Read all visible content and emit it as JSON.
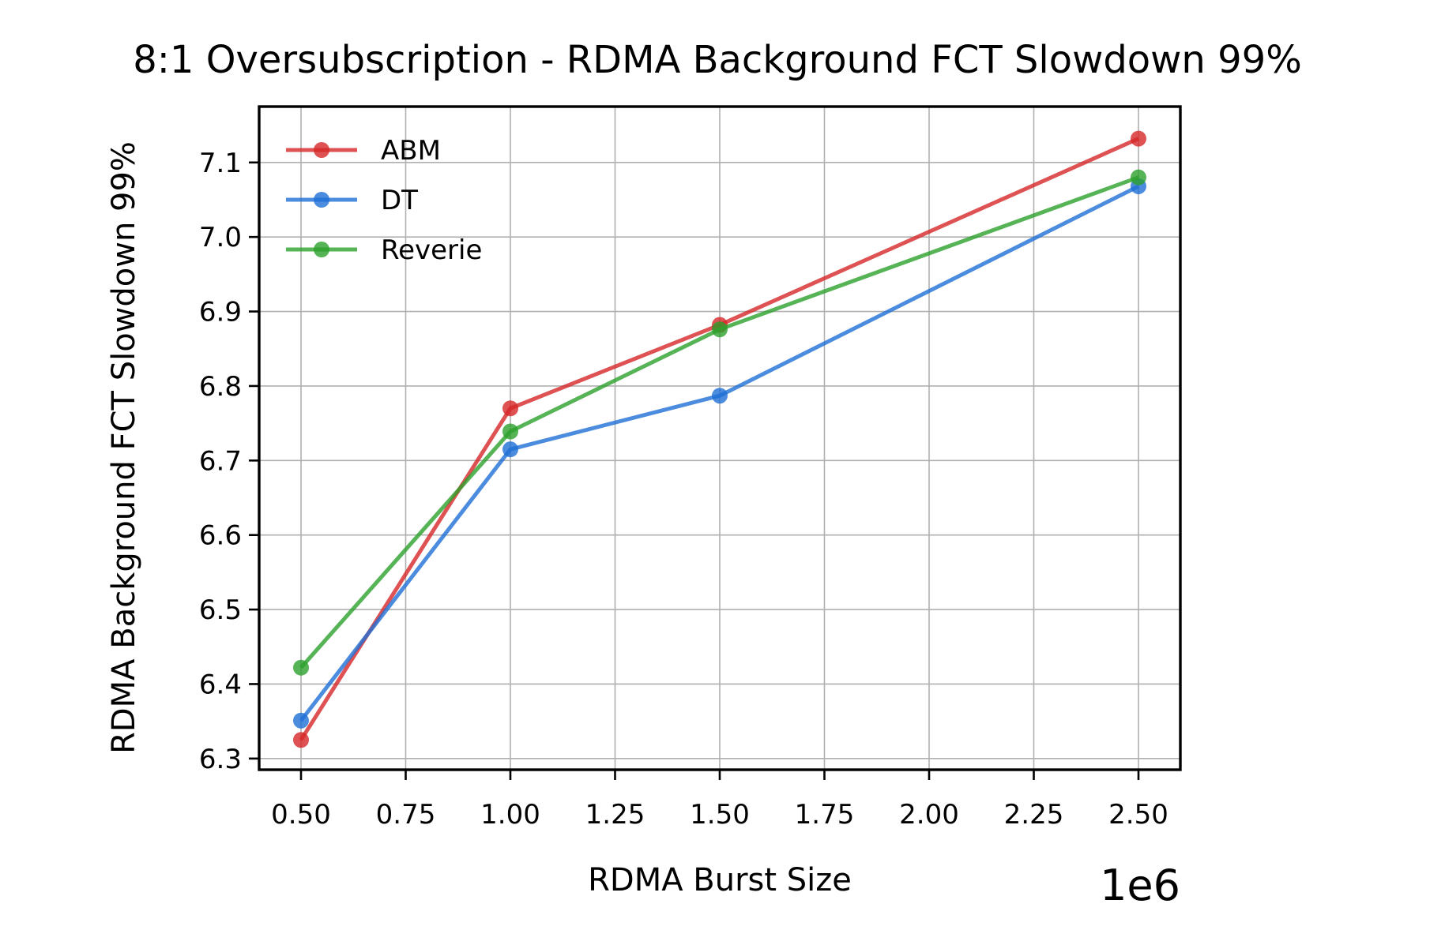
{
  "chart_data": {
    "type": "line",
    "title": "8:1 Oversubscription - RDMA Background FCT Slowdown 99%",
    "xlabel": "RDMA Burst Size",
    "ylabel": "RDMA Background FCT Slowdown 99%",
    "x_offset_label": "1e6",
    "x": [
      0.5,
      1.0,
      1.5,
      2.5
    ],
    "xlim": [
      0.4,
      2.6
    ],
    "ylim": [
      6.285,
      7.175
    ],
    "xticks": [
      0.5,
      0.75,
      1.0,
      1.25,
      1.5,
      1.75,
      2.0,
      2.25,
      2.5
    ],
    "xtick_labels": [
      "0.50",
      "0.75",
      "1.00",
      "1.25",
      "1.50",
      "1.75",
      "2.00",
      "2.25",
      "2.50"
    ],
    "yticks": [
      6.3,
      6.4,
      6.5,
      6.6,
      6.7,
      6.8,
      6.9,
      7.0,
      7.1
    ],
    "ytick_labels": [
      "6.3",
      "6.4",
      "6.5",
      "6.6",
      "6.7",
      "6.8",
      "6.9",
      "7.0",
      "7.1"
    ],
    "grid": true,
    "legend_position": "top-left",
    "series": [
      {
        "name": "ABM",
        "color": "#d62728",
        "values": [
          6.325,
          6.77,
          6.882,
          7.132
        ]
      },
      {
        "name": "DT",
        "color": "#1f6fd6",
        "values": [
          6.351,
          6.715,
          6.787,
          7.068
        ]
      },
      {
        "name": "Reverie",
        "color": "#2ca02c",
        "values": [
          6.422,
          6.739,
          6.876,
          7.08
        ]
      }
    ]
  }
}
